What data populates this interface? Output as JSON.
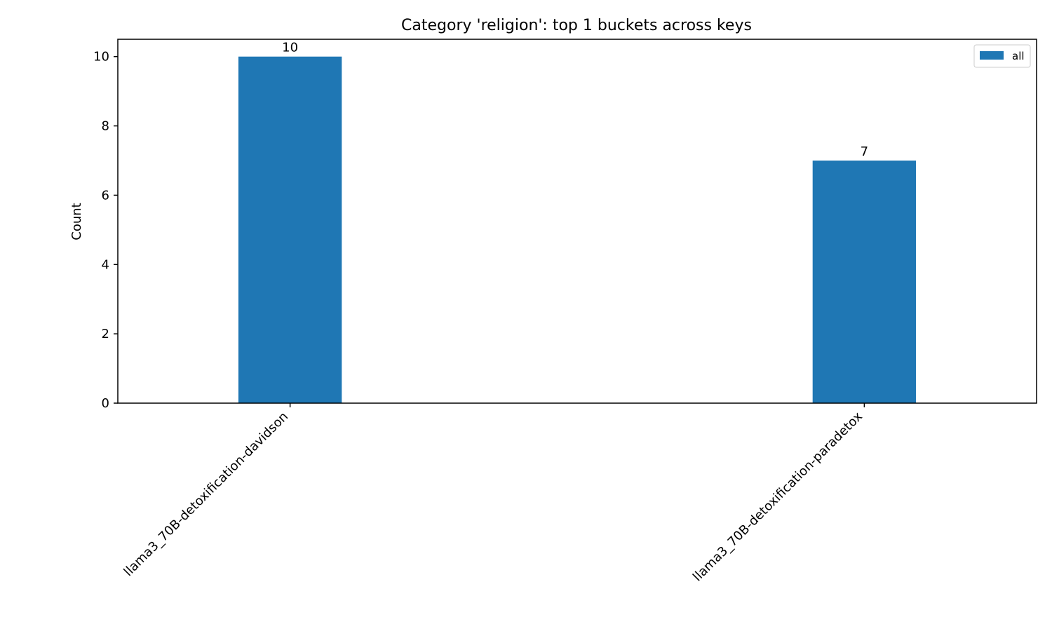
{
  "chart_data": {
    "type": "bar",
    "title": "Category 'religion': top 1 buckets across keys",
    "xlabel": "",
    "ylabel": "Count",
    "categories": [
      "llama3_70B-detoxification-davidson",
      "llama3_70B-detoxification-paradetox"
    ],
    "series": [
      {
        "name": "all",
        "values": [
          10,
          7
        ],
        "color": "#1f77b4"
      }
    ],
    "data_labels": [
      "10",
      "7"
    ],
    "ylim": [
      0,
      10.5
    ],
    "yticks": [
      0,
      2,
      4,
      6,
      8,
      10
    ],
    "legend": "top-right",
    "grid": false
  }
}
